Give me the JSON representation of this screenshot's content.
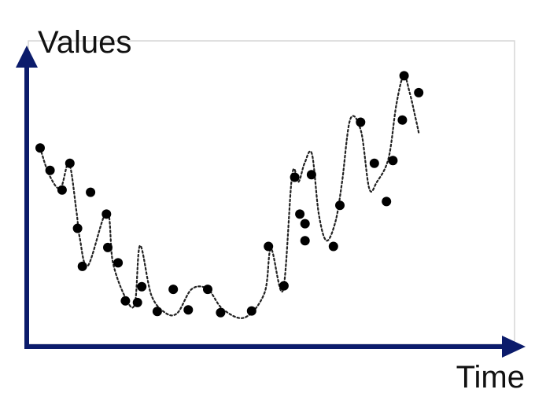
{
  "chart_data": {
    "type": "scatter",
    "title": "",
    "xlabel": "Time",
    "ylabel": "Values",
    "xlim": [
      0,
      100
    ],
    "ylim": [
      0,
      100
    ],
    "grid": false,
    "show_tick_labels": false,
    "axis_color": "#0b1b6b",
    "point_color": "#000000",
    "curve_style": "dotted smooth line",
    "series": [
      {
        "values_x": [
          0.0,
          2.3,
          5.1,
          6.9,
          11.7,
          8.7,
          9.8,
          15.4,
          15.7,
          18.1,
          23.6,
          19.8,
          22.6,
          27.2,
          30.9,
          34.4,
          38.9,
          41.9,
          49.1,
          53.0,
          56.6,
          59.1,
          60.3,
          61.5,
          61.5,
          63.0,
          68.1,
          69.6,
          74.4,
          77.6,
          80.4,
          81.9,
          84.1,
          84.5,
          87.9
        ],
        "values_y": [
          66.6,
          58.4,
          51.2,
          61.0,
          50.4,
          37.2,
          23.3,
          42.4,
          30.2,
          24.6,
          15.9,
          10.7,
          10.1,
          6.8,
          14.9,
          7.4,
          14.9,
          6.4,
          7.0,
          30.6,
          16.2,
          55.9,
          42.4,
          38.9,
          32.7,
          56.8,
          30.6,
          45.6,
          76.0,
          61.0,
          47.0,
          62.0,
          76.8,
          93.0,
          86.8
        ]
      }
    ],
    "curve_x": [
      0.0,
      2.1,
      4.7,
      6.7,
      8.4,
      9.2,
      11.1,
      15.5,
      16.9,
      19.9,
      22.0,
      23.2,
      25.8,
      29.1,
      31.9,
      35.2,
      38.9,
      42.4,
      47.5,
      52.1,
      53.6,
      56.4,
      58.5,
      60.0,
      61.4,
      63.1,
      64.7,
      66.5,
      68.6,
      70.1,
      72.0,
      74.5,
      76.4,
      78.2,
      80.9,
      82.7,
      84.4,
      85.8,
      87.1,
      87.9
    ],
    "curve_y": [
      66.6,
      56.8,
      51.8,
      61.0,
      43.8,
      33.7,
      23.6,
      43.5,
      24.7,
      11.6,
      9.7,
      30.9,
      12.9,
      6.3,
      6.3,
      15.0,
      15.0,
      7.7,
      4.6,
      13.6,
      29.7,
      14.7,
      56.7,
      54.2,
      61.0,
      64.4,
      42.4,
      32.7,
      39.9,
      54.2,
      77.1,
      72.7,
      51.8,
      54.2,
      62.9,
      82.5,
      93.0,
      86.8,
      78.0,
      72.2
    ]
  }
}
